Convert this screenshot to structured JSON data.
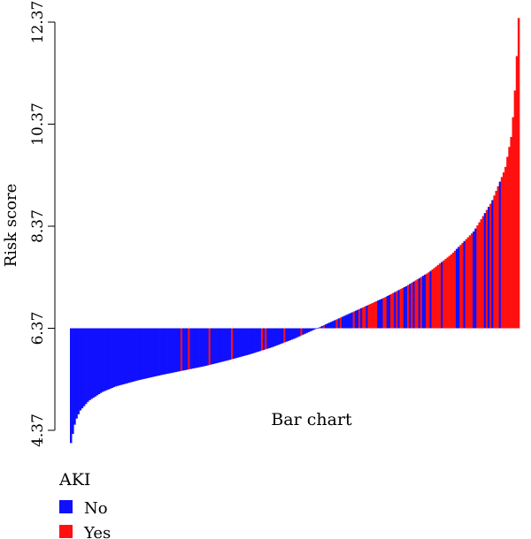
{
  "chart_data": {
    "type": "bar",
    "ylabel": "Risk score",
    "annotation": "Bar chart",
    "baseline": 6.37,
    "ylim": [
      4.37,
      12.37
    ],
    "yticks": [
      "4.37",
      "6.37",
      "8.37",
      "10.37",
      "12.37"
    ],
    "legend": {
      "title": "AKI",
      "placement": "bottom-left",
      "entries": [
        {
          "label": "No",
          "color": "#1010ff"
        },
        {
          "label": "Yes",
          "color": "#ff1010"
        }
      ]
    },
    "series": [
      {
        "name": "No",
        "color": "#1010ff"
      },
      {
        "name": "Yes",
        "color": "#ff1010"
      }
    ],
    "n_bars": 240,
    "sorted_profile_points": [
      [
        0.0,
        4.12
      ],
      [
        0.01,
        4.55
      ],
      [
        0.02,
        4.75
      ],
      [
        0.04,
        4.95
      ],
      [
        0.07,
        5.12
      ],
      [
        0.1,
        5.23
      ],
      [
        0.15,
        5.35
      ],
      [
        0.2,
        5.45
      ],
      [
        0.25,
        5.54
      ],
      [
        0.3,
        5.63
      ],
      [
        0.35,
        5.74
      ],
      [
        0.4,
        5.86
      ],
      [
        0.45,
        6.0
      ],
      [
        0.5,
        6.17
      ],
      [
        0.55,
        6.37
      ],
      [
        0.6,
        6.57
      ],
      [
        0.65,
        6.77
      ],
      [
        0.7,
        6.97
      ],
      [
        0.75,
        7.2
      ],
      [
        0.8,
        7.47
      ],
      [
        0.85,
        7.82
      ],
      [
        0.9,
        8.27
      ],
      [
        0.94,
        8.85
      ],
      [
        0.97,
        9.5
      ],
      [
        0.985,
        10.2
      ],
      [
        0.993,
        11.2
      ],
      [
        1.0,
        12.45
      ]
    ]
  }
}
